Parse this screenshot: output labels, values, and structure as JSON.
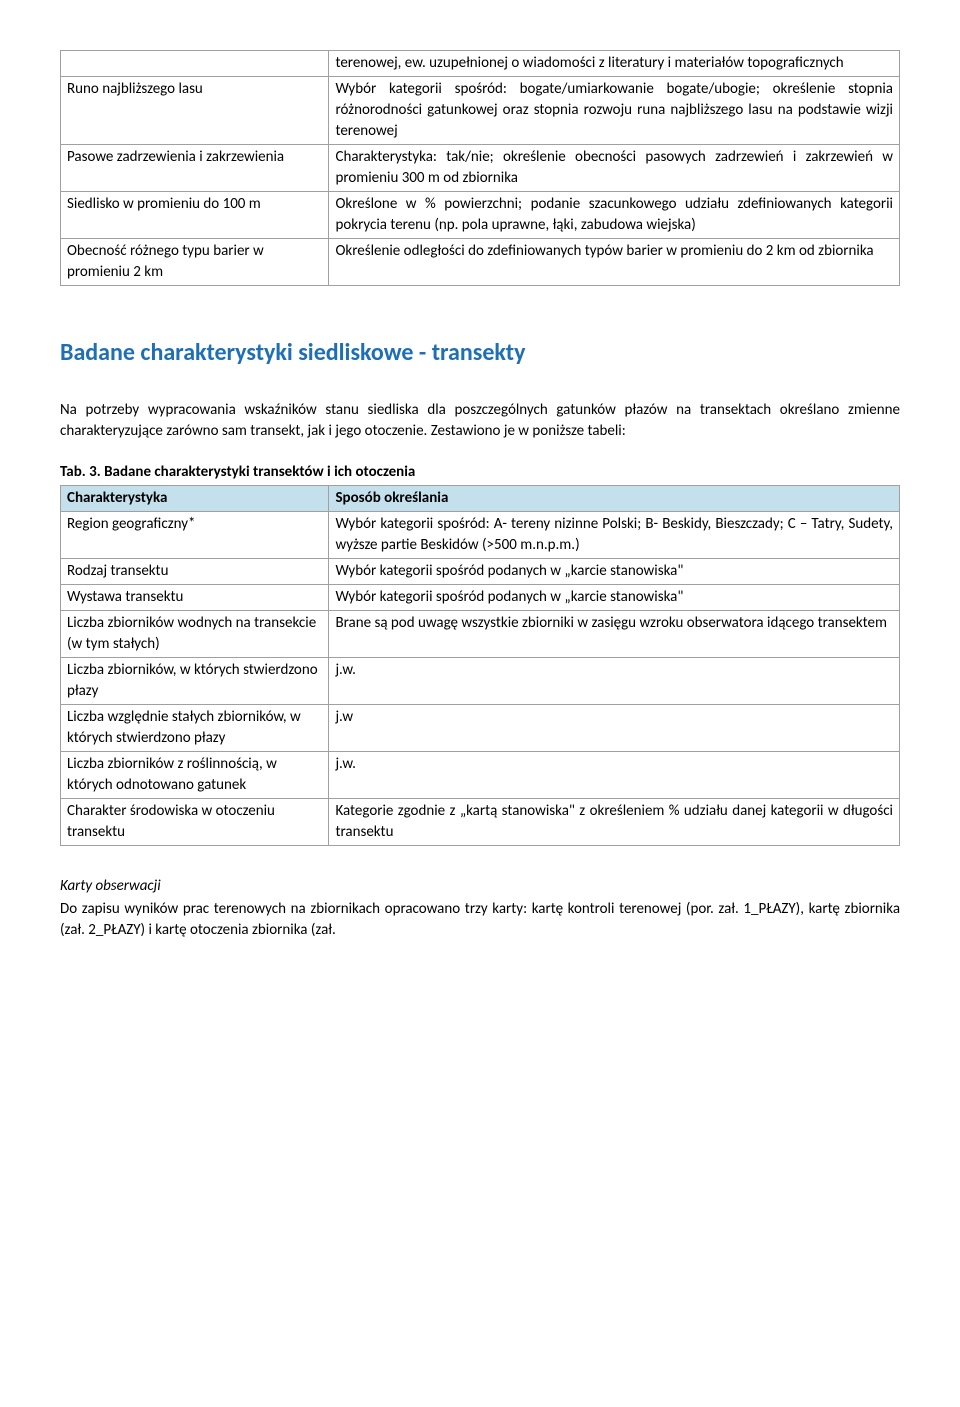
{
  "table1": {
    "rows": [
      {
        "left": "",
        "right": "terenowej, ew. uzupełnionej o wiadomości z literatury i materiałów topograficznych"
      },
      {
        "left": "Runo najbliższego lasu",
        "right": "Wybór kategorii spośród: bogate/umiarkowanie bogate/ubogie; określenie stopnia różnorodności gatunkowej oraz stopnia rozwoju runa najbliższego lasu na podstawie wizji terenowej"
      },
      {
        "left": "Pasowe zadrzewienia i zakrzewienia",
        "right": "Charakterystyka: tak/nie; określenie obecności pasowych zadrzewień i zakrzewień w promieniu 300 m od zbiornika"
      },
      {
        "left": "Siedlisko w promieniu do 100 m",
        "right": "Określone w % powierzchni; podanie szacunkowego udziału zdefiniowanych kategorii pokrycia terenu (np. pola uprawne, łąki, zabudowa wiejska)"
      },
      {
        "left": "Obecność różnego typu barier w promieniu 2 km",
        "right": "Określenie odległości do zdefiniowanych typów barier w promieniu do 2 km od zbiornika"
      }
    ]
  },
  "section_heading": "Badane charakterystyki siedliskowe - transekty",
  "intro_para": "Na potrzeby wypracowania wskaźników stanu siedliska dla poszczególnych gatunków płazów na transektach określano zmienne charakteryzujące zarówno sam transekt, jak i jego otoczenie. Zestawiono je w poniższe tabeli:",
  "table2_caption": "Tab. 3. Badane charakterystyki transektów i ich otoczenia",
  "table2": {
    "header": {
      "left": "Charakterystyka",
      "right": "Sposób określania"
    },
    "rows": [
      {
        "left": "Region geograficzny*",
        "right": "Wybór kategorii spośród: A- tereny nizinne Polski; B- Beskidy, Bieszczady; C – Tatry, Sudety, wyższe partie Beskidów (>500 m.n.p.m.)"
      },
      {
        "left": "Rodzaj transektu",
        "right": "Wybór kategorii spośród podanych w „karcie stanowiska\""
      },
      {
        "left": "Wystawa transektu",
        "right": "Wybór kategorii spośród podanych w „karcie stanowiska\""
      },
      {
        "left": "Liczba zbiorników wodnych na transekcie (w tym stałych)",
        "right": "Brane są pod uwagę wszystkie zbiorniki w zasięgu wzroku obserwatora idącego transektem"
      },
      {
        "left": "Liczba zbiorników, w których stwierdzono płazy",
        "right": "j.w."
      },
      {
        "left": "Liczba względnie stałych zbiorników, w których stwierdzono płazy",
        "right": "j.w"
      },
      {
        "left": "Liczba zbiorników z roślinnością, w których odnotowano gatunek",
        "right": "j.w."
      },
      {
        "left": "Charakter środowiska w otoczeniu transektu",
        "right": "Kategorie zgodnie z „kartą stanowiska\" z określeniem % udziału danej kategorii w długości transektu"
      }
    ]
  },
  "karty_heading": "Karty obserwacji",
  "karty_para": "Do zapisu wyników prac terenowych na zbiornikach opracowano trzy karty: kartę kontroli terenowej (por. zał. 1_PŁAZY), kartę zbiornika (zał. 2_PŁAZY) i kartę otoczenia zbiornika (zał."
}
